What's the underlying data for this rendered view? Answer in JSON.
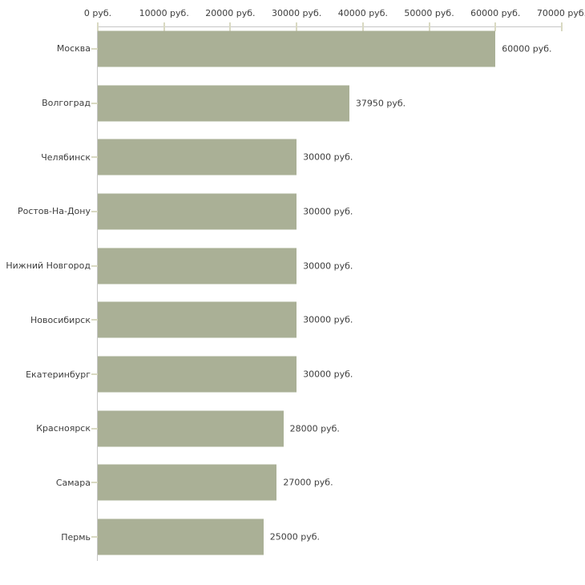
{
  "chart_data": {
    "type": "bar",
    "orientation": "horizontal",
    "categories": [
      "Москва",
      "Волгоград",
      "Челябинск",
      "Ростов-На-Дону",
      "Нижний Новгород",
      "Новосибирск",
      "Екатеринбург",
      "Красноярск",
      "Самара",
      "Пермь"
    ],
    "values": [
      60000,
      37950,
      30000,
      30000,
      30000,
      30000,
      30000,
      28000,
      27000,
      25000
    ],
    "value_labels": [
      "60000 руб.",
      "37950 руб.",
      "30000 руб.",
      "30000 руб.",
      "30000 руб.",
      "30000 руб.",
      "30000 руб.",
      "28000 руб.",
      "27000 руб.",
      "25000 руб."
    ],
    "xlim": [
      0,
      70000
    ],
    "x_tick_values": [
      0,
      10000,
      20000,
      30000,
      40000,
      50000,
      60000,
      70000
    ],
    "x_tick_labels": [
      "0 руб.",
      "10000 руб.",
      "20000 руб.",
      "30000 руб.",
      "40000 руб.",
      "50000 руб.",
      "60000 руб.",
      "70000 руб."
    ],
    "unit": "руб.",
    "grid": false,
    "legend": "none",
    "title": "",
    "xlabel": "",
    "ylabel": ""
  },
  "colors": {
    "bar": "#aab096",
    "axis_line": "#c6c6c6",
    "tick": "#d9d9c2",
    "text": "#3d3d3d",
    "background": "#ffffff"
  }
}
